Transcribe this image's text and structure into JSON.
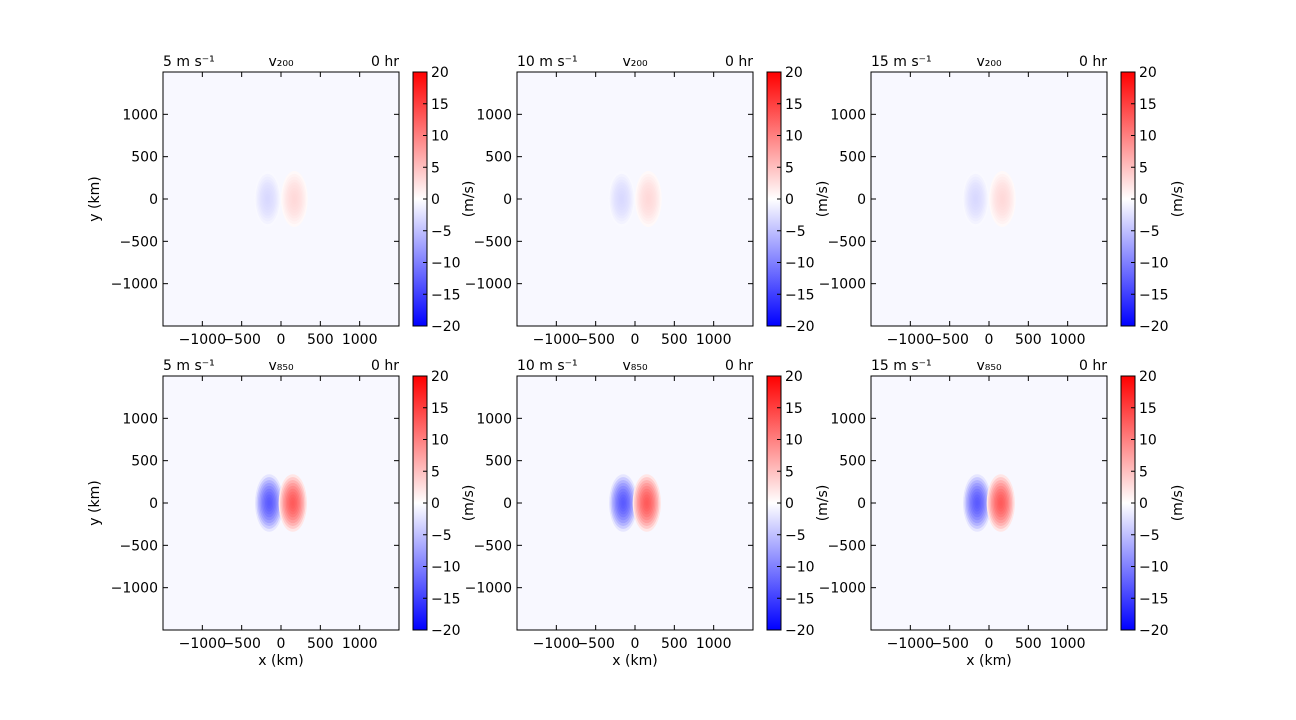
{
  "chart_data": [
    {
      "type": "heatmap",
      "left_title": "5 m s⁻¹",
      "center_title": "v₂₀₀",
      "right_title": "0 hr",
      "level": "200",
      "wind_speed": "5 m s⁻¹",
      "hour": "0 hr",
      "xlabel": "",
      "ylabel": "y (km)",
      "cbar_label": "",
      "xlim": [
        -1500,
        1500
      ],
      "ylim": [
        -1500,
        1500
      ],
      "xticks": [
        -1000,
        -500,
        0,
        500,
        1000
      ],
      "yticks": [
        -1000,
        -500,
        0,
        500,
        1000
      ],
      "vmin": -20,
      "vmax": 20,
      "cbar_ticks": [
        -20,
        -15,
        -10,
        -5,
        0,
        5,
        10,
        15,
        20
      ],
      "dipole": {
        "center_offset_km": 170,
        "peak_ms": 3,
        "radius_x_km": 170,
        "radius_y_km": 330
      }
    },
    {
      "type": "heatmap",
      "left_title": "10 m s⁻¹",
      "center_title": "v₂₀₀",
      "right_title": "0 hr",
      "level": "200",
      "wind_speed": "10 m s⁻¹",
      "hour": "0 hr",
      "xlabel": "",
      "ylabel": "",
      "cbar_label": "(m/s)",
      "xlim": [
        -1500,
        1500
      ],
      "ylim": [
        -1500,
        1500
      ],
      "xticks": [
        -1000,
        -500,
        0,
        500,
        1000
      ],
      "yticks": [
        -1000,
        -500,
        0,
        500,
        1000
      ],
      "vmin": -20,
      "vmax": 20,
      "cbar_ticks": [
        -20,
        -15,
        -10,
        -5,
        0,
        5,
        10,
        15,
        20
      ],
      "dipole": {
        "center_offset_km": 170,
        "peak_ms": 3,
        "radius_x_km": 170,
        "radius_y_km": 330
      }
    },
    {
      "type": "heatmap",
      "left_title": "15 m s⁻¹",
      "center_title": "v₂₀₀",
      "right_title": "0 hr",
      "level": "200",
      "wind_speed": "15 m s⁻¹",
      "hour": "0 hr",
      "xlabel": "",
      "ylabel": "",
      "cbar_label": "(m/s)",
      "cbar_label_right": "(m/s)",
      "xlim": [
        -1500,
        1500
      ],
      "ylim": [
        -1500,
        1500
      ],
      "xticks": [
        -1000,
        -500,
        0,
        500,
        1000
      ],
      "yticks": [
        -1000,
        -500,
        0,
        500,
        1000
      ],
      "vmin": -20,
      "vmax": 20,
      "cbar_ticks": [
        -20,
        -15,
        -10,
        -5,
        0,
        5,
        10,
        15,
        20
      ],
      "dipole": {
        "center_offset_km": 170,
        "peak_ms": 3,
        "radius_x_km": 170,
        "radius_y_km": 330
      }
    },
    {
      "type": "heatmap",
      "left_title": "5 m s⁻¹",
      "center_title": "v₈₅₀",
      "right_title": "0 hr",
      "level": "850",
      "wind_speed": "5 m s⁻¹",
      "hour": "0 hr",
      "xlabel": "x (km)",
      "ylabel": "y (km)",
      "cbar_label": "",
      "xlim": [
        -1500,
        1500
      ],
      "ylim": [
        -1500,
        1500
      ],
      "xticks": [
        -1000,
        -500,
        0,
        500,
        1000
      ],
      "yticks": [
        -1000,
        -500,
        0,
        500,
        1000
      ],
      "vmin": -20,
      "vmax": 20,
      "cbar_ticks": [
        -20,
        -15,
        -10,
        -5,
        0,
        5,
        10,
        15,
        20
      ],
      "dipole": {
        "center_offset_km": 150,
        "peak_ms": 13,
        "radius_x_km": 180,
        "radius_y_km": 340
      }
    },
    {
      "type": "heatmap",
      "left_title": "10 m s⁻¹",
      "center_title": "v₈₅₀",
      "right_title": "0 hr",
      "level": "850",
      "wind_speed": "10 m s⁻¹",
      "hour": "0 hr",
      "xlabel": "x (km)",
      "ylabel": "",
      "cbar_label": "(m/s)",
      "xlim": [
        -1500,
        1500
      ],
      "ylim": [
        -1500,
        1500
      ],
      "xticks": [
        -1000,
        -500,
        0,
        500,
        1000
      ],
      "yticks": [
        -1000,
        -500,
        0,
        500,
        1000
      ],
      "vmin": -20,
      "vmax": 20,
      "cbar_ticks": [
        -20,
        -15,
        -10,
        -5,
        0,
        5,
        10,
        15,
        20
      ],
      "dipole": {
        "center_offset_km": 150,
        "peak_ms": 13,
        "radius_x_km": 180,
        "radius_y_km": 340
      }
    },
    {
      "type": "heatmap",
      "left_title": "15 m s⁻¹",
      "center_title": "v₈₅₀",
      "right_title": "0 hr",
      "level": "850",
      "wind_speed": "15 m s⁻¹",
      "hour": "0 hr",
      "xlabel": "x (km)",
      "ylabel": "",
      "cbar_label": "(m/s)",
      "cbar_label_right": "(m/s)",
      "xlim": [
        -1500,
        1500
      ],
      "ylim": [
        -1500,
        1500
      ],
      "xticks": [
        -1000,
        -500,
        0,
        500,
        1000
      ],
      "yticks": [
        -1000,
        -500,
        0,
        500,
        1000
      ],
      "vmin": -20,
      "vmax": 20,
      "cbar_ticks": [
        -20,
        -15,
        -10,
        -5,
        0,
        5,
        10,
        15,
        20
      ],
      "dipole": {
        "center_offset_km": 150,
        "peak_ms": 13,
        "radius_x_km": 180,
        "radius_y_km": 340
      }
    }
  ],
  "colormap": {
    "name": "bwr",
    "negative": "#0000ff",
    "zero": "#ffffff",
    "positive": "#ff0000",
    "background": "#f8f8ff"
  }
}
